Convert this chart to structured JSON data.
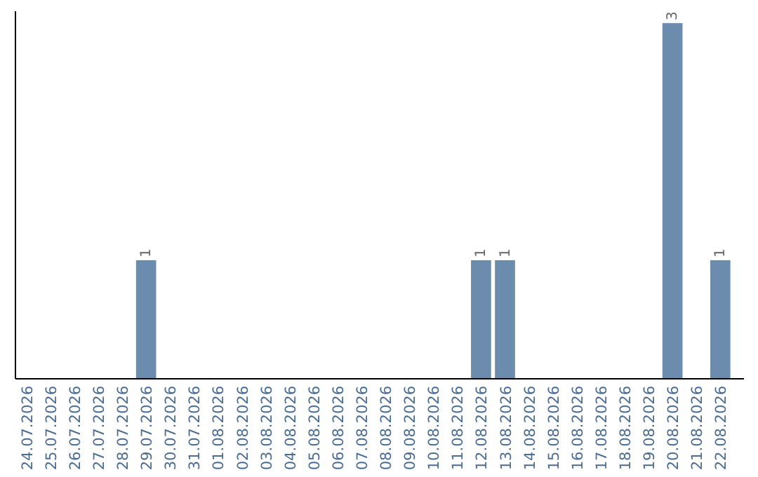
{
  "chart_data": {
    "type": "bar",
    "categories": [
      "24.07.2026",
      "25.07.2026",
      "26.07.2026",
      "27.07.2026",
      "28.07.2026",
      "29.07.2026",
      "30.07.2026",
      "31.07.2026",
      "01.08.2026",
      "02.08.2026",
      "03.08.2026",
      "04.08.2026",
      "05.08.2026",
      "06.08.2026",
      "07.08.2026",
      "08.08.2026",
      "09.08.2026",
      "10.08.2026",
      "11.08.2026",
      "12.08.2026",
      "13.08.2026",
      "14.08.2026",
      "15.08.2026",
      "16.08.2026",
      "17.08.2026",
      "18.08.2026",
      "19.08.2026",
      "20.08.2026",
      "21.08.2026",
      "22.08.2026"
    ],
    "values": [
      0,
      0,
      0,
      0,
      0,
      1,
      0,
      0,
      0,
      0,
      0,
      0,
      0,
      0,
      0,
      0,
      0,
      0,
      0,
      1,
      1,
      0,
      0,
      0,
      0,
      0,
      0,
      3,
      0,
      1
    ],
    "value_labels": [
      null,
      null,
      null,
      null,
      null,
      "1",
      null,
      null,
      null,
      null,
      null,
      null,
      null,
      null,
      null,
      null,
      null,
      null,
      null,
      "1",
      "1",
      null,
      null,
      null,
      null,
      null,
      null,
      "3",
      null,
      "1"
    ],
    "color": "#6b8cad",
    "ylim": [
      0,
      3.1
    ],
    "tick_labels": "x"
  }
}
